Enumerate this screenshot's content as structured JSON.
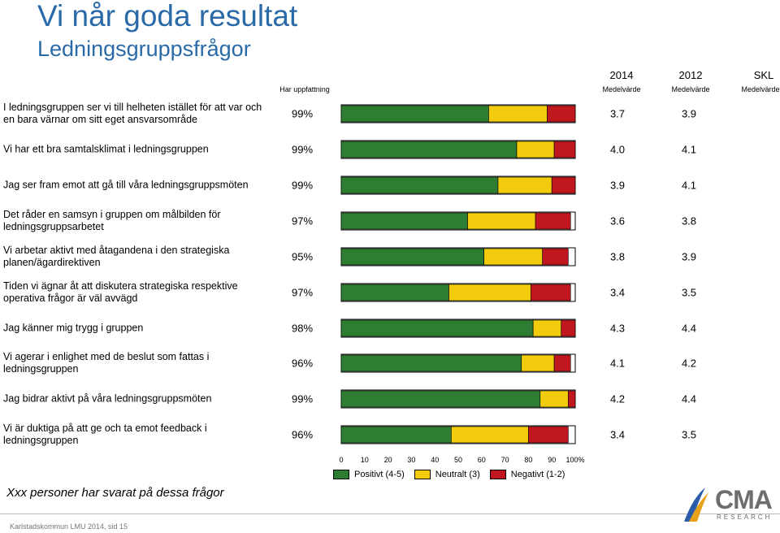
{
  "header": {
    "title": "Vi når goda resultat",
    "subtitle": "Ledningsgruppsfrågor"
  },
  "columns": {
    "pct_label": "Har uppfattning",
    "year_2014": "2014",
    "year_2012": "2012",
    "skl": "SKL",
    "sub_2014": "Medelvärde",
    "sub_2012": "Medelvärde",
    "sub_skl": "Medelvärde"
  },
  "chart_data": {
    "type": "bar",
    "orientation": "horizontal",
    "stacked": true,
    "xlim": [
      0,
      100
    ],
    "x_ticks": [
      "0",
      "10",
      "20",
      "30",
      "40",
      "50",
      "60",
      "70",
      "80",
      "90",
      "100%"
    ],
    "series_colors": {
      "positive": "#2e7d32",
      "neutral": "#f2cc0c",
      "negative": "#c0161e"
    },
    "legend": [
      {
        "key": "positive",
        "label": "Positivt (4-5)"
      },
      {
        "key": "neutral",
        "label": "Neutralt (3)"
      },
      {
        "key": "negative",
        "label": "Negativt (1-2)"
      }
    ],
    "rows": [
      {
        "question": "I ledningsgruppen ser vi till helheten istället för att var och en bara värnar om sitt eget ansvarsområde",
        "has_opinion": "99%",
        "positive": 63,
        "neutral": 25,
        "negative": 12,
        "mean_2014": "3.7",
        "mean_2012": "3.9",
        "mean_skl": ""
      },
      {
        "question": "Vi har ett bra samtalsklimat i ledningsgruppen",
        "has_opinion": "99%",
        "positive": 75,
        "neutral": 16,
        "negative": 9,
        "mean_2014": "4.0",
        "mean_2012": "4.1",
        "mean_skl": ""
      },
      {
        "question": "Jag ser fram emot att gå till våra ledningsgruppsmöten",
        "has_opinion": "99%",
        "positive": 67,
        "neutral": 23,
        "negative": 10,
        "mean_2014": "3.9",
        "mean_2012": "4.1",
        "mean_skl": ""
      },
      {
        "question": "Det råder en samsyn i gruppen om målbilden för ledningsgruppsarbetet",
        "has_opinion": "97%",
        "positive": 54,
        "neutral": 29,
        "negative": 15,
        "mean_2014": "3.6",
        "mean_2012": "3.8",
        "mean_skl": ""
      },
      {
        "question": "Vi arbetar aktivt med åtagandena i den strategiska planen/ägardirektiven",
        "has_opinion": "95%",
        "positive": 61,
        "neutral": 25,
        "negative": 11,
        "mean_2014": "3.8",
        "mean_2012": "3.9",
        "mean_skl": ""
      },
      {
        "question": "Tiden vi ägnar åt att diskutera strategiska respektive operativa frågor är väl avvägd",
        "has_opinion": "97%",
        "positive": 46,
        "neutral": 35,
        "negative": 17,
        "mean_2014": "3.4",
        "mean_2012": "3.5",
        "mean_skl": ""
      },
      {
        "question": "Jag känner mig trygg i gruppen",
        "has_opinion": "98%",
        "positive": 82,
        "neutral": 12,
        "negative": 6,
        "mean_2014": "4.3",
        "mean_2012": "4.4",
        "mean_skl": ""
      },
      {
        "question": "Vi agerar i enlighet med de beslut som fattas i ledningsgruppen",
        "has_opinion": "96%",
        "positive": 77,
        "neutral": 14,
        "negative": 7,
        "mean_2014": "4.1",
        "mean_2012": "4.2",
        "mean_skl": ""
      },
      {
        "question": "Jag bidrar aktivt på våra ledningsgruppsmöten",
        "has_opinion": "99%",
        "positive": 85,
        "neutral": 12,
        "negative": 3,
        "mean_2014": "4.2",
        "mean_2012": "4.4",
        "mean_skl": ""
      },
      {
        "question": "Vi är duktiga på att ge och ta emot feedback i ledningsgruppen",
        "has_opinion": "96%",
        "positive": 47,
        "neutral": 33,
        "negative": 17,
        "mean_2014": "3.4",
        "mean_2012": "3.5",
        "mean_skl": ""
      }
    ]
  },
  "respondents_note": "Xxx personer har svarat på dessa frågor",
  "footer": "Karlstadskommun LMU 2014, sid 15",
  "logo": {
    "name": "CMA",
    "sub": "RESEARCH"
  }
}
